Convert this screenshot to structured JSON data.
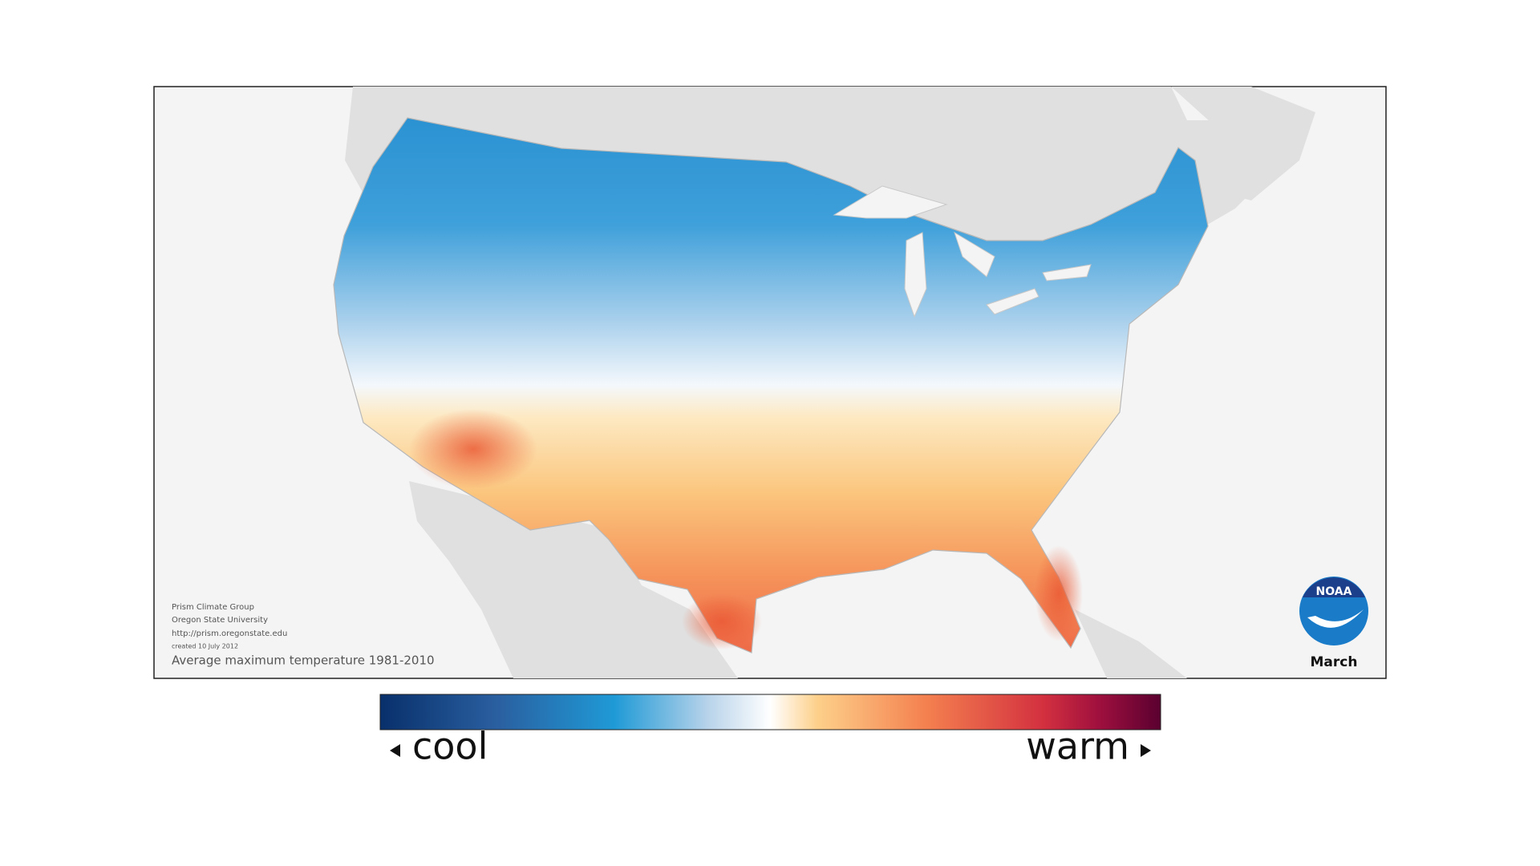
{
  "map": {
    "credits": [
      "Prism Climate Group",
      "Oregon State University",
      "http://prism.oregonstate.edu",
      "created 10 July 2012"
    ],
    "caption": "Average maximum temperature 1981-2010",
    "month": "March",
    "logo": "NOAA"
  },
  "legend": {
    "low": "cool",
    "high": "warm"
  }
}
